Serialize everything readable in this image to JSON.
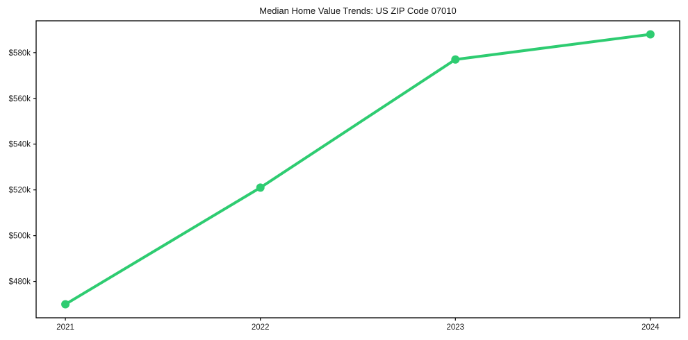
{
  "chart_data": {
    "type": "line",
    "title": "Median Home Value Trends: US ZIP Code 07010",
    "x": [
      2021,
      2022,
      2023,
      2024
    ],
    "x_tick_labels": [
      "2021",
      "2022",
      "2023",
      "2024"
    ],
    "series": [
      {
        "name": "Median home value",
        "values": [
          470000,
          521000,
          577000,
          588000
        ]
      }
    ],
    "y_ticks": [
      480000,
      500000,
      520000,
      540000,
      560000,
      580000
    ],
    "y_tick_labels": [
      "$480k",
      "$500k",
      "$520k",
      "$540k",
      "$560k",
      "$580k"
    ],
    "xlim": [
      2020.85,
      2024.15
    ],
    "ylim": [
      464100,
      593900
    ],
    "grid": false,
    "legend": false,
    "xlabel": "",
    "ylabel": "",
    "line_color": "#2ecc71",
    "marker": "circle",
    "axis_color": "#000000",
    "tick_label_color": "#1a1a1a",
    "background_color": "#ffffff"
  }
}
